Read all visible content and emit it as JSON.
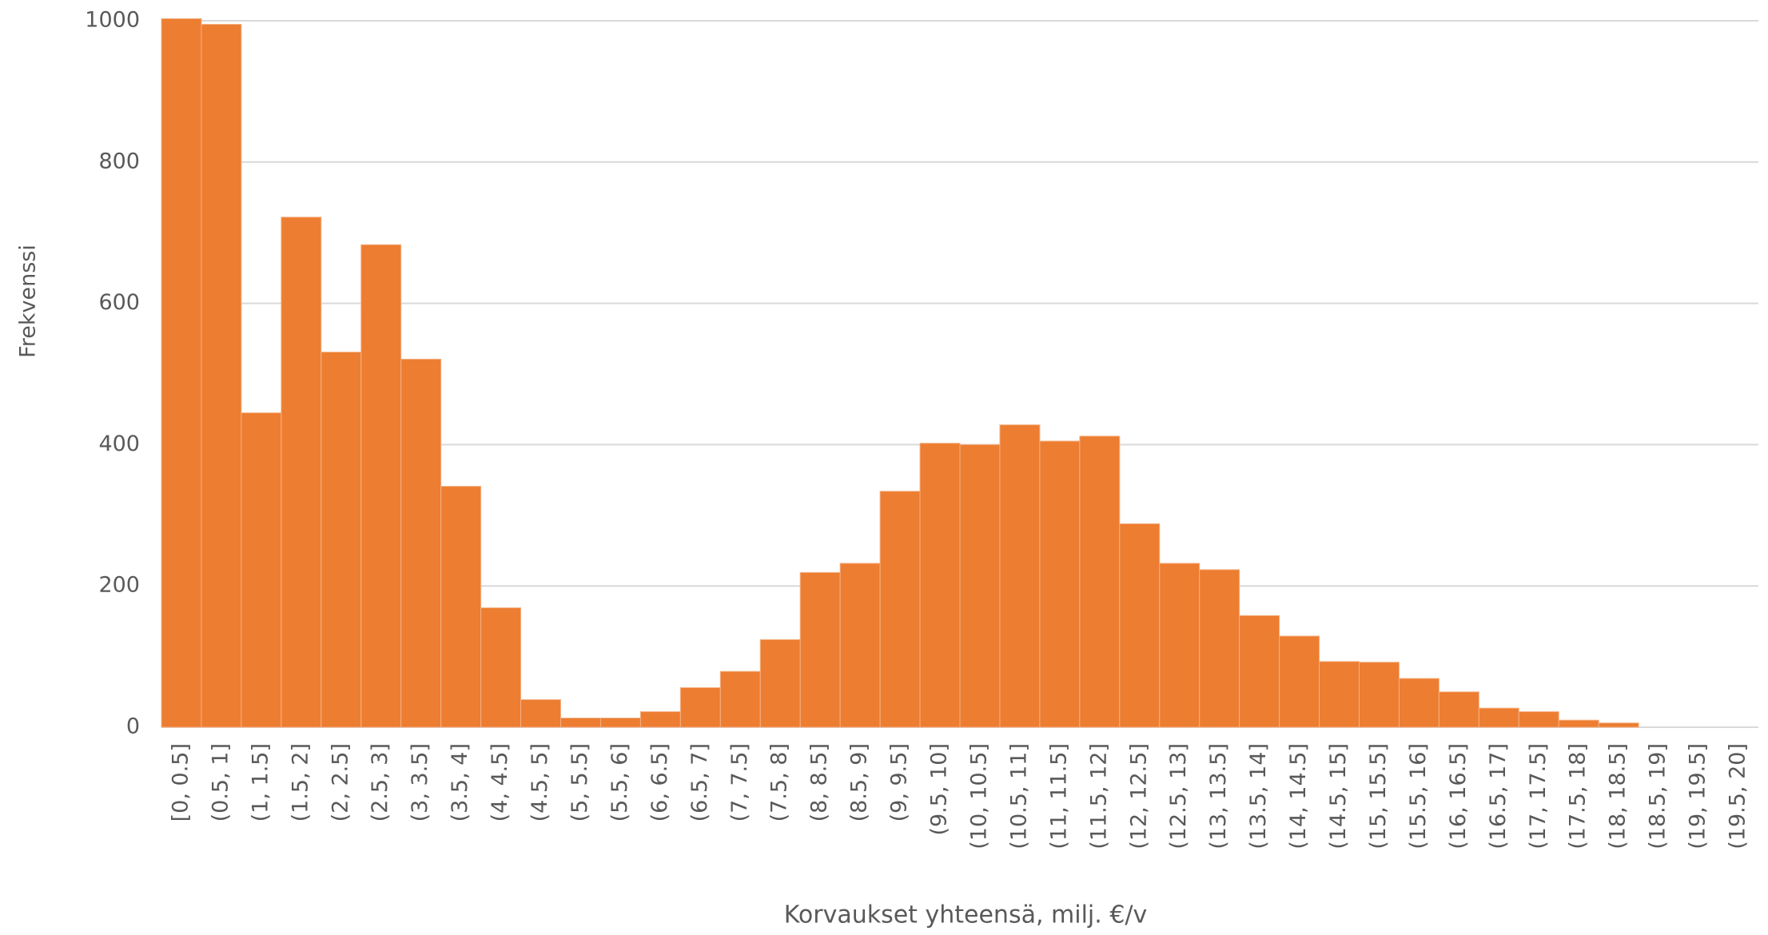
{
  "chart_data": {
    "type": "bar",
    "x_label": "Korvaukset yhteensä, milj. €/v",
    "y_label": "Frekvenssi",
    "categories": [
      "[0, 0.5]",
      "(0.5, 1]",
      "(1, 1.5]",
      "(1.5, 2]",
      "(2, 2.5]",
      "(2.5, 3]",
      "(3, 3.5]",
      "(3.5, 4]",
      "(4, 4.5]",
      "(4.5, 5]",
      "(5, 5.5]",
      "(5.5, 6]",
      "(6, 6.5]",
      "(6.5, 7]",
      "(7, 7.5]",
      "(7.5, 8]",
      "(8, 8.5]",
      "(8.5, 9]",
      "(9, 9.5]",
      "(9.5, 10]",
      "(10, 10.5]",
      "(10.5, 11]",
      "(11, 11.5]",
      "(11.5, 12]",
      "(12, 12.5]",
      "(12.5, 13]",
      "(13, 13.5]",
      "(13.5, 14]",
      "(14, 14.5]",
      "(14.5, 15]",
      "(15, 15.5]",
      "(15.5, 16]",
      "(16, 16.5]",
      "(16.5, 17]",
      "(17, 17.5]",
      "(17.5, 18]",
      "(18, 18.5]",
      "(18.5, 19]",
      "(19, 19.5]",
      "(19.5, 20]"
    ],
    "values": [
      1003,
      995,
      445,
      722,
      531,
      683,
      521,
      341,
      169,
      39,
      13,
      13,
      22,
      56,
      79,
      124,
      219,
      232,
      334,
      402,
      400,
      428,
      405,
      412,
      288,
      232,
      223,
      158,
      129,
      93,
      92,
      69,
      50,
      27,
      22,
      10,
      6,
      0,
      0,
      0
    ],
    "color": "#ed7d31",
    "ylim": [
      0,
      1000
    ],
    "yticks": [
      0,
      200,
      400,
      600,
      800,
      1000
    ],
    "grid": true
  }
}
